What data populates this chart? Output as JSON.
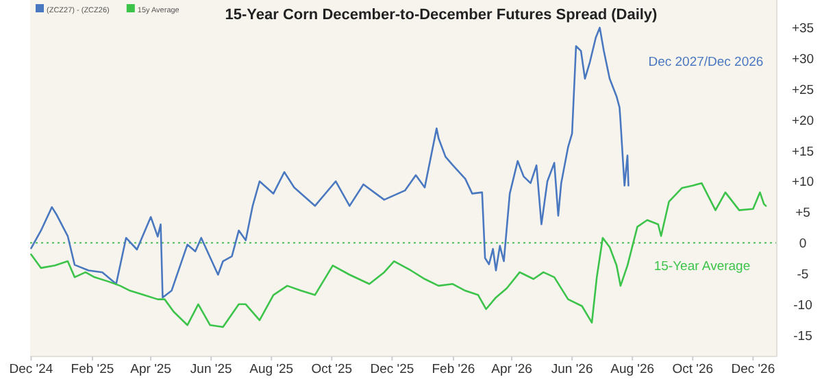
{
  "chart_data": {
    "type": "line",
    "title": "15-Year Corn December-to-December Futures Spread (Daily)",
    "legend": "top left",
    "marker": "none",
    "line_style": "solid",
    "grid": false,
    "xlim": [
      "2024-11-30",
      "2026-12-25"
    ],
    "ylim": [
      -18.5,
      39.5
    ],
    "xticks": [
      {
        "value": "2024-12-01",
        "label": "Dec '24"
      },
      {
        "value": "2025-02-01",
        "label": "Feb '25"
      },
      {
        "value": "2025-04-01",
        "label": "Apr '25"
      },
      {
        "value": "2025-06-01",
        "label": "Jun '25"
      },
      {
        "value": "2025-08-01",
        "label": "Aug '25"
      },
      {
        "value": "2025-10-01",
        "label": "Oct '25"
      },
      {
        "value": "2025-12-01",
        "label": "Dec '25"
      },
      {
        "value": "2026-02-01",
        "label": "Feb '26"
      },
      {
        "value": "2026-04-01",
        "label": "Apr '26"
      },
      {
        "value": "2026-06-01",
        "label": "Jun '26"
      },
      {
        "value": "2026-08-01",
        "label": "Aug '26"
      },
      {
        "value": "2026-10-01",
        "label": "Oct '26"
      },
      {
        "value": "2026-12-01",
        "label": "Dec '26"
      }
    ],
    "yticks": [
      {
        "value": -15,
        "label": "-15"
      },
      {
        "value": -10,
        "label": "-10"
      },
      {
        "value": -5,
        "label": "-5"
      },
      0,
      {
        "value": 5,
        "label": "+5"
      },
      {
        "value": 10,
        "label": "+10"
      },
      {
        "value": 15,
        "label": "+15"
      },
      {
        "value": 20,
        "label": "+20"
      },
      {
        "value": 25,
        "label": "+25"
      },
      {
        "value": 30,
        "label": "+30"
      },
      {
        "value": 35,
        "label": "+35"
      }
    ],
    "ref_lines": [
      {
        "axis": "y",
        "value": 0,
        "label": null,
        "color": "#4cbf5a",
        "line_style": "dotted"
      }
    ],
    "annotations": [
      "Dec 2027/Dec 2026",
      "15-Year Average"
    ],
    "series": [
      {
        "name": "(ZCZ27) - (ZCZ26)",
        "color": "#4a78c0",
        "x": [
          "2024-12-01",
          "2024-12-11",
          "2024-12-22",
          "2024-12-27",
          "2025-01-07",
          "2025-01-14",
          "2025-01-28",
          "2025-02-11",
          "2025-02-25",
          "2025-03-07",
          "2025-03-18",
          "2025-04-01",
          "2025-04-08",
          "2025-04-11",
          "2025-04-13",
          "2025-04-22",
          "2025-05-08",
          "2025-05-16",
          "2025-05-22",
          "2025-06-08",
          "2025-06-13",
          "2025-06-22",
          "2025-06-29",
          "2025-07-06",
          "2025-07-13",
          "2025-07-20",
          "2025-08-03",
          "2025-08-14",
          "2025-08-24",
          "2025-09-14",
          "2025-10-05",
          "2025-10-19",
          "2025-11-02",
          "2025-11-23",
          "2025-12-14",
          "2025-12-25",
          "2026-01-03",
          "2026-01-15",
          "2026-01-17",
          "2026-01-24",
          "2026-01-31",
          "2026-02-13",
          "2026-02-20",
          "2026-03-02",
          "2026-03-05",
          "2026-03-09",
          "2026-03-13",
          "2026-03-16",
          "2026-03-20",
          "2026-03-24",
          "2026-03-30",
          "2026-04-07",
          "2026-04-13",
          "2026-04-20",
          "2026-04-26",
          "2026-05-01",
          "2026-05-03",
          "2026-05-07",
          "2026-05-14",
          "2026-05-18",
          "2026-05-21",
          "2026-05-28",
          "2026-06-01",
          "2026-06-05",
          "2026-06-10",
          "2026-06-14",
          "2026-06-19",
          "2026-06-25",
          "2026-06-29",
          "2026-07-03",
          "2026-07-09",
          "2026-07-16",
          "2026-07-19",
          "2026-07-20",
          "2026-07-24",
          "2026-07-27",
          "2026-07-28"
        ],
        "values": [
          -0.9,
          2,
          5.8,
          4.5,
          1.1,
          -3.6,
          -4.5,
          -4.8,
          -6.7,
          0.8,
          -1.1,
          4.2,
          1,
          3,
          -8.9,
          -7.8,
          -0.3,
          -1.4,
          0.8,
          -5.2,
          -3,
          -2.2,
          2,
          0.4,
          6,
          10,
          8,
          11.5,
          9,
          6,
          10,
          6,
          9.5,
          7,
          8.5,
          11,
          9,
          18.6,
          17,
          14,
          12.7,
          10.4,
          8,
          8.2,
          -2.5,
          -3.5,
          -1,
          -4.5,
          -0.5,
          -3,
          8,
          13.3,
          10.8,
          9.7,
          12.6,
          3,
          5.3,
          10,
          13,
          4.4,
          9.7,
          15.6,
          17.8,
          32,
          31.2,
          26.7,
          29.4,
          33.4,
          35,
          31.3,
          26.7,
          23.8,
          22,
          19.7,
          9.3,
          14.2,
          9.3
        ]
      },
      {
        "name": "15y Average",
        "color": "#3cc34a",
        "x": [
          "2024-12-01",
          "2024-12-11",
          "2024-12-25",
          "2025-01-07",
          "2025-01-14",
          "2025-01-25",
          "2025-02-03",
          "2025-02-17",
          "2025-03-01",
          "2025-03-11",
          "2025-03-25",
          "2025-04-08",
          "2025-04-15",
          "2025-04-24",
          "2025-05-08",
          "2025-05-19",
          "2025-05-31",
          "2025-06-13",
          "2025-06-29",
          "2025-07-06",
          "2025-07-20",
          "2025-08-03",
          "2025-08-17",
          "2025-08-31",
          "2025-09-14",
          "2025-10-02",
          "2025-10-19",
          "2025-11-08",
          "2025-11-23",
          "2025-12-03",
          "2025-12-20",
          "2026-01-03",
          "2026-01-17",
          "2026-01-31",
          "2026-02-13",
          "2026-02-26",
          "2026-03-06",
          "2026-03-16",
          "2026-03-27",
          "2026-04-09",
          "2026-04-23",
          "2026-05-03",
          "2026-05-14",
          "2026-05-28",
          "2026-06-11",
          "2026-06-21",
          "2026-06-26",
          "2026-07-02",
          "2026-07-09",
          "2026-07-16",
          "2026-07-20",
          "2026-07-27",
          "2026-08-06",
          "2026-08-16",
          "2026-08-27",
          "2026-08-30",
          "2026-09-07",
          "2026-09-20",
          "2026-10-01",
          "2026-10-10",
          "2026-10-24",
          "2026-11-03",
          "2026-11-17",
          "2026-12-01",
          "2026-12-08",
          "2026-12-12",
          "2026-12-14"
        ],
        "values": [
          -1.9,
          -4.1,
          -3.7,
          -3,
          -5.6,
          -4.8,
          -5.6,
          -6.3,
          -7,
          -7.8,
          -8.5,
          -9.2,
          -9.2,
          -11.2,
          -13.4,
          -10,
          -13.4,
          -13.7,
          -10,
          -10,
          -12.6,
          -8.5,
          -7,
          -7.8,
          -8.5,
          -3.7,
          -5.2,
          -6.7,
          -4.8,
          -3,
          -4.5,
          -5.9,
          -7,
          -6.7,
          -7.8,
          -8.5,
          -10.8,
          -8.9,
          -7.4,
          -4.8,
          -5.9,
          -4.8,
          -5.6,
          -9.2,
          -10.3,
          -13,
          -5.6,
          0.8,
          -0.7,
          -3.7,
          -7,
          -3.7,
          2.6,
          3.7,
          3,
          1.1,
          6.7,
          8.9,
          9.3,
          9.7,
          5.3,
          8.2,
          5.3,
          5.5,
          8.2,
          6.3,
          6
        ]
      }
    ]
  }
}
